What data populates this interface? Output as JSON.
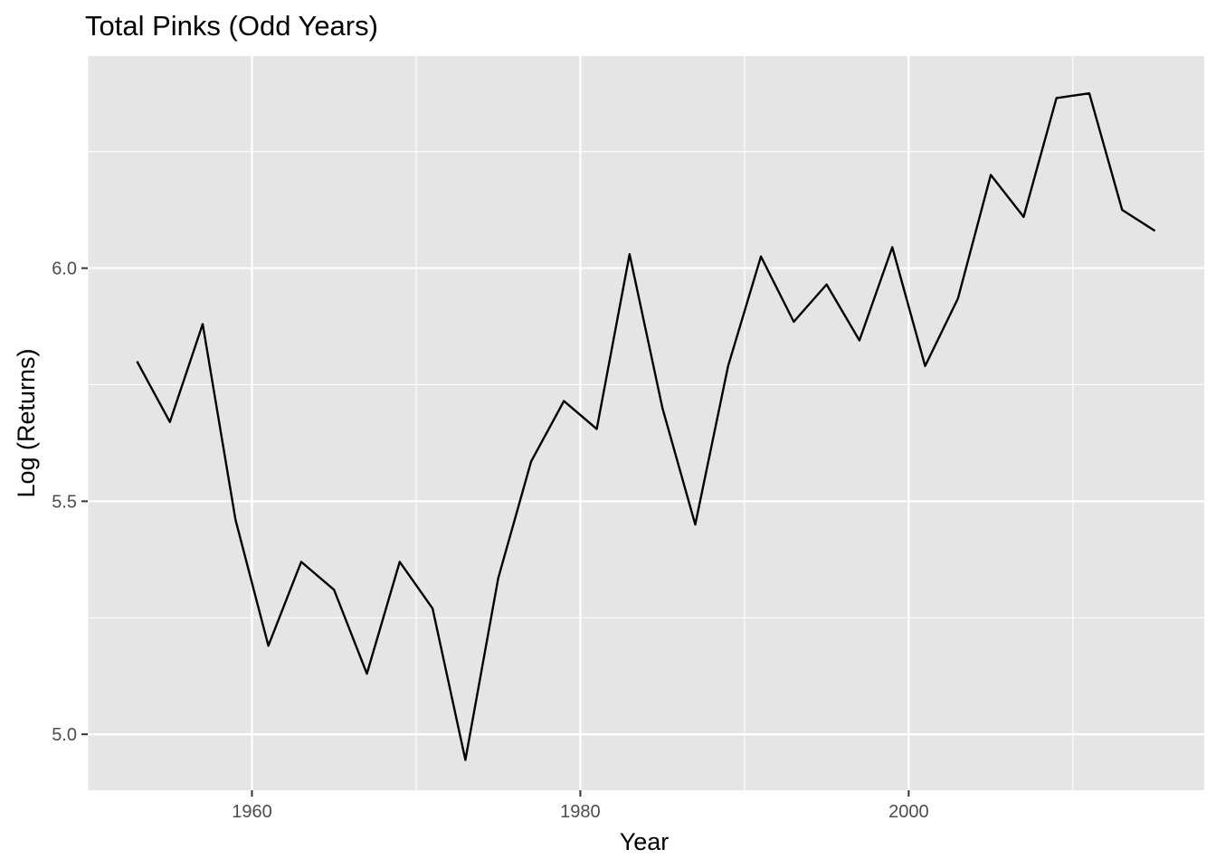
{
  "chart_data": {
    "type": "line",
    "title": "Total Pinks (Odd Years)",
    "xlabel": "Year",
    "ylabel": "Log (Returns)",
    "xlim": [
      1950,
      2018
    ],
    "ylim": [
      4.88,
      6.455
    ],
    "x_ticks": [
      1960,
      1980,
      2000
    ],
    "x_tick_labels": [
      "1960",
      "1980",
      "2000"
    ],
    "y_ticks": [
      5.0,
      5.5,
      6.0
    ],
    "y_tick_labels": [
      "5.0",
      "5.5",
      "6.0"
    ],
    "grid": true,
    "legend": "none",
    "colors": {
      "panel": "#e5e5e5",
      "grid": "#ffffff",
      "line": "#000000",
      "tick": "#4d4d4d"
    },
    "series": [
      {
        "x": [
          1953,
          1955,
          1957,
          1959,
          1961,
          1963,
          1965,
          1967,
          1969,
          1971,
          1973,
          1975,
          1977,
          1979,
          1981,
          1983,
          1985,
          1987,
          1989,
          1991,
          1993,
          1995,
          1997,
          1999,
          2001,
          2003,
          2005,
          2007,
          2009,
          2011,
          2013,
          2015
        ],
        "y": [
          5.8,
          5.67,
          5.88,
          5.46,
          5.19,
          5.37,
          5.31,
          5.13,
          5.37,
          5.27,
          4.945,
          5.335,
          5.585,
          5.715,
          5.655,
          6.03,
          5.7,
          5.45,
          5.79,
          6.025,
          5.885,
          5.965,
          5.845,
          6.045,
          5.79,
          5.935,
          6.2,
          6.11,
          6.365,
          6.375,
          6.125,
          6.08
        ]
      }
    ]
  }
}
